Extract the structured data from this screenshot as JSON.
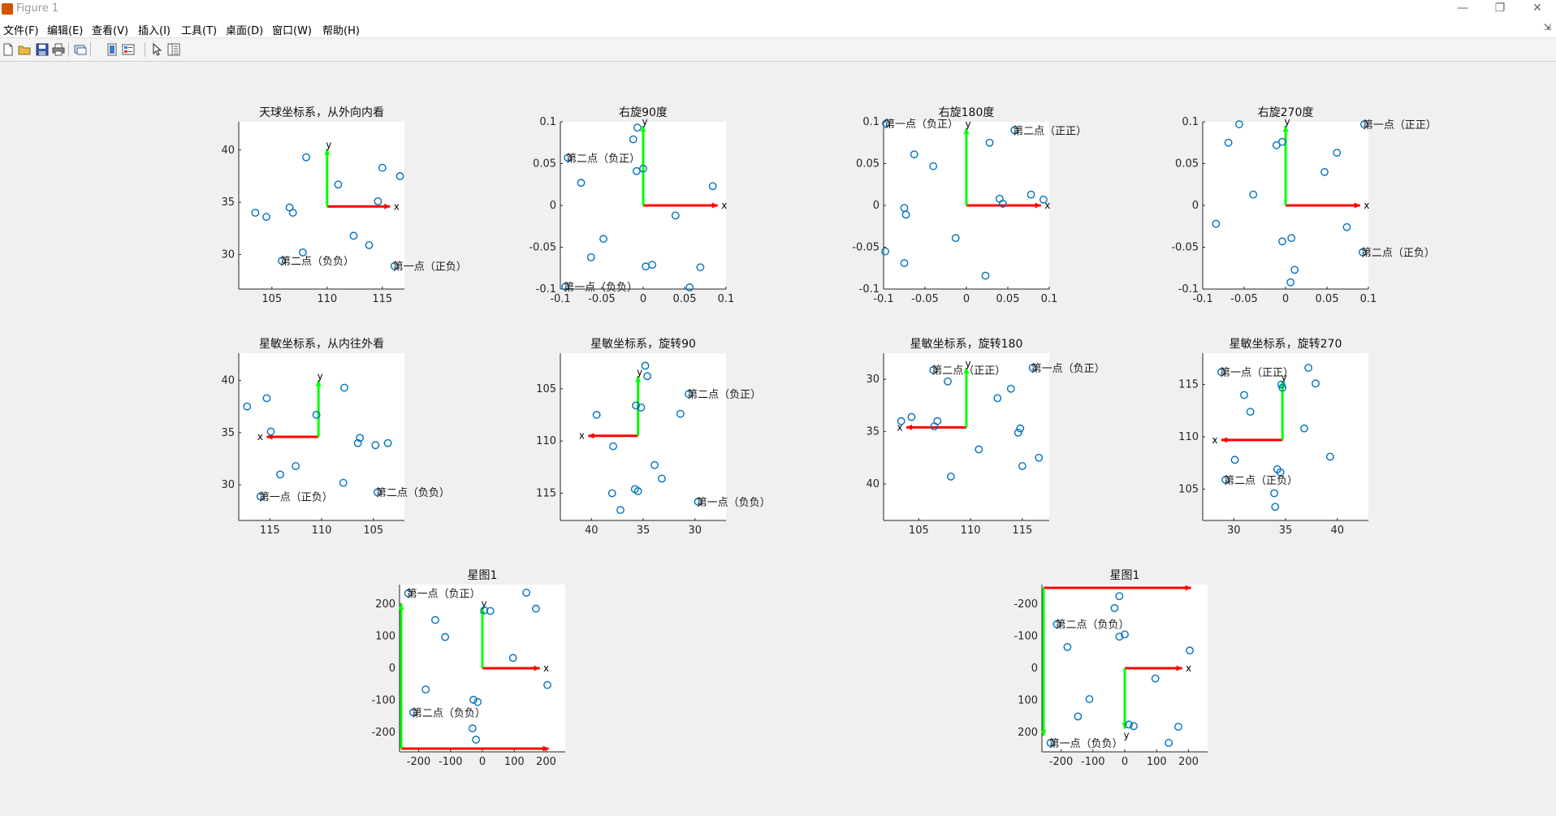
{
  "window": {
    "title": "Figure 1",
    "minimize_glyph": "—",
    "restore_glyph": "❐",
    "close_glyph": "✕"
  },
  "menu": {
    "items": [
      "文件(F)",
      "编辑(E)",
      "查看(V)",
      "插入(I)",
      "工具(T)",
      "桌面(D)",
      "窗口(W)",
      "帮助(H)"
    ],
    "overflow_glyph": "⇲"
  },
  "toolbar": {
    "icons": [
      "new-figure-icon",
      "open-file-icon",
      "save-icon",
      "print-icon",
      "link-plot-icon",
      "insert-colorbar-icon",
      "insert-legend-icon",
      "pointer-icon",
      "property-inspector-icon"
    ]
  },
  "colors": {
    "marker": "#0072bd",
    "x_arrow": "#ff0000",
    "y_arrow": "#00ff00",
    "axes_bg": "#ffffff",
    "figure_bg": "#f0f0f0"
  },
  "chart_data": [
    {
      "type": "scatter",
      "title": "天球坐标系，从外向内看",
      "xlim": [
        102,
        117
      ],
      "ylim": [
        26.7,
        42.7
      ],
      "xdir": "normal",
      "ydir": "normal",
      "xticks": [
        105,
        110,
        115
      ],
      "yticks": [
        30,
        35,
        40
      ],
      "points": [
        [
          103.5,
          34.0
        ],
        [
          104.5,
          33.6
        ],
        [
          106.6,
          34.5
        ],
        [
          106.9,
          34.0
        ],
        [
          107.8,
          30.2
        ],
        [
          108.1,
          39.3
        ],
        [
          111.0,
          36.7
        ],
        [
          112.4,
          31.8
        ],
        [
          113.8,
          30.9
        ],
        [
          114.6,
          35.1
        ],
        [
          115.0,
          38.3
        ],
        [
          116.6,
          37.5
        ],
        [
          105.9,
          29.4
        ],
        [
          116.1,
          28.9
        ]
      ],
      "axes_lines": {
        "origin": [
          110.0,
          34.6
        ],
        "x_end": [
          115.7,
          34.6
        ],
        "y_end": [
          110.0,
          40.1
        ],
        "x_label": "x",
        "y_label": "y"
      },
      "annotations": [
        {
          "text": "第二点（负负）",
          "x": 105.9,
          "y": 29.4
        },
        {
          "text": "第一点（正负）",
          "x": 116.1,
          "y": 28.9
        }
      ]
    },
    {
      "type": "scatter",
      "title": "右旋90度",
      "xlim": [
        -0.1,
        0.1
      ],
      "ylim": [
        -0.1,
        0.1
      ],
      "xdir": "normal",
      "ydir": "normal",
      "xticks": [
        -0.1,
        -0.05,
        0,
        0.05,
        0.1
      ],
      "yticks": [
        -0.1,
        -0.05,
        0,
        0.05,
        0.1
      ],
      "points": [
        [
          -0.094,
          -0.097
        ],
        [
          -0.091,
          0.057
        ],
        [
          -0.075,
          0.027
        ],
        [
          -0.063,
          -0.062
        ],
        [
          -0.048,
          -0.04
        ],
        [
          -0.012,
          0.079
        ],
        [
          -0.007,
          0.093
        ],
        [
          -0.008,
          0.041
        ],
        [
          0.0,
          0.044
        ],
        [
          0.003,
          -0.073
        ],
        [
          0.011,
          -0.071
        ],
        [
          0.039,
          -0.012
        ],
        [
          0.056,
          -0.098
        ],
        [
          0.069,
          -0.074
        ],
        [
          0.084,
          0.023
        ]
      ],
      "axes_lines": {
        "origin": [
          0,
          0
        ],
        "x_end": [
          0.09,
          0
        ],
        "y_end": [
          0,
          0.095
        ],
        "x_label": "x",
        "y_label": "y"
      },
      "annotations": [
        {
          "text": "第二点（负正）",
          "x": -0.091,
          "y": 0.057
        },
        {
          "text": "第一点（负负）",
          "x": -0.094,
          "y": -0.097
        }
      ]
    },
    {
      "type": "scatter",
      "title": "右旋180度",
      "xlim": [
        -0.1,
        0.1
      ],
      "ylim": [
        -0.1,
        0.1
      ],
      "xdir": "normal",
      "ydir": "normal",
      "xticks": [
        -0.1,
        -0.05,
        0,
        0.05,
        0.1
      ],
      "yticks": [
        -0.1,
        -0.05,
        0,
        0.05,
        0.1
      ],
      "points": [
        [
          -0.097,
          0.098
        ],
        [
          -0.098,
          -0.055
        ],
        [
          -0.063,
          0.061
        ],
        [
          -0.04,
          0.047
        ],
        [
          -0.075,
          -0.003
        ],
        [
          -0.073,
          -0.011
        ],
        [
          -0.075,
          -0.069
        ],
        [
          -0.013,
          -0.039
        ],
        [
          0.023,
          -0.084
        ],
        [
          0.028,
          0.075
        ],
        [
          0.04,
          0.008
        ],
        [
          0.044,
          0.002
        ],
        [
          0.058,
          0.09
        ],
        [
          0.078,
          0.013
        ],
        [
          0.093,
          0.007
        ]
      ],
      "axes_lines": {
        "origin": [
          0,
          0
        ],
        "x_end": [
          0.09,
          0
        ],
        "y_end": [
          0,
          0.092
        ],
        "x_label": "x",
        "y_label": "y"
      },
      "annotations": [
        {
          "text": "第一点（负正）",
          "x": -0.097,
          "y": 0.098
        },
        {
          "text": "第二点（正正）",
          "x": 0.058,
          "y": 0.09
        }
      ]
    },
    {
      "type": "scatter",
      "title": "右旋270度",
      "xlim": [
        -0.1,
        0.1
      ],
      "ylim": [
        -0.1,
        0.1
      ],
      "xdir": "normal",
      "ydir": "normal",
      "xticks": [
        -0.1,
        -0.05,
        0,
        0.05,
        0.1
      ],
      "yticks": [
        -0.1,
        -0.05,
        0,
        0.05,
        0.1
      ],
      "points": [
        [
          -0.056,
          0.097
        ],
        [
          -0.069,
          0.075
        ],
        [
          -0.084,
          -0.022
        ],
        [
          -0.039,
          0.013
        ],
        [
          -0.011,
          0.072
        ],
        [
          -0.004,
          0.076
        ],
        [
          -0.004,
          -0.043
        ],
        [
          0.007,
          -0.039
        ],
        [
          0.011,
          -0.077
        ],
        [
          0.006,
          -0.092
        ],
        [
          0.047,
          0.04
        ],
        [
          0.062,
          0.063
        ],
        [
          0.074,
          -0.026
        ],
        [
          0.095,
          0.097
        ],
        [
          0.093,
          -0.056
        ]
      ],
      "axes_lines": {
        "origin": [
          0,
          0
        ],
        "x_end": [
          0.09,
          0
        ],
        "y_end": [
          0,
          0.095
        ],
        "x_label": "x",
        "y_label": "y"
      },
      "annotations": [
        {
          "text": "第一点（正正）",
          "x": 0.095,
          "y": 0.097
        },
        {
          "text": "第二点（正负）",
          "x": 0.093,
          "y": -0.056
        }
      ]
    },
    {
      "type": "scatter",
      "title": "星敏坐标系，从内往外看",
      "xlim": [
        102,
        118
      ],
      "ylim": [
        26.6,
        42.6
      ],
      "xdir": "reverse",
      "ydir": "normal",
      "xticks": [
        105,
        110,
        115
      ],
      "yticks": [
        30,
        35,
        40
      ],
      "points": [
        [
          117.2,
          37.5
        ],
        [
          115.3,
          38.3
        ],
        [
          114.9,
          35.1
        ],
        [
          114.0,
          31.0
        ],
        [
          112.5,
          31.8
        ],
        [
          110.5,
          36.7
        ],
        [
          107.8,
          39.3
        ],
        [
          107.9,
          30.2
        ],
        [
          106.5,
          34.0
        ],
        [
          106.3,
          34.5
        ],
        [
          104.8,
          33.8
        ],
        [
          104.6,
          29.3
        ],
        [
          103.6,
          34.0
        ],
        [
          115.9,
          28.9
        ]
      ],
      "axes_lines": {
        "origin": [
          110.3,
          34.6
        ],
        "x_end": [
          115.3,
          34.6
        ],
        "y_end": [
          110.3,
          40.0
        ],
        "x_label": "x",
        "y_label": "y"
      },
      "annotations": [
        {
          "text": "第一点（正负）",
          "x": 115.9,
          "y": 28.9
        },
        {
          "text": "第二点（负负）",
          "x": 104.6,
          "y": 29.3
        }
      ]
    },
    {
      "type": "scatter",
      "title": "星敏坐标系，旋转90",
      "xlim": [
        27,
        43
      ],
      "ylim": [
        101.6,
        117.6
      ],
      "xdir": "reverse",
      "ydir": "reverse",
      "xticks": [
        30,
        35,
        40
      ],
      "yticks": [
        105,
        110,
        115
      ],
      "points": [
        [
          39.5,
          107.5
        ],
        [
          37.9,
          110.5
        ],
        [
          38.0,
          115.0
        ],
        [
          37.2,
          116.6
        ],
        [
          35.7,
          106.6
        ],
        [
          35.2,
          106.8
        ],
        [
          35.5,
          114.8
        ],
        [
          35.8,
          114.6
        ],
        [
          34.8,
          102.8
        ],
        [
          34.6,
          103.8
        ],
        [
          33.9,
          112.3
        ],
        [
          33.2,
          113.6
        ],
        [
          31.4,
          107.4
        ],
        [
          30.6,
          105.5
        ],
        [
          29.7,
          115.8
        ]
      ],
      "axes_lines": {
        "origin": [
          35.5,
          109.5
        ],
        "x_end": [
          40.3,
          109.5
        ],
        "y_end": [
          35.5,
          103.8
        ],
        "x_label": "x",
        "y_label": "y"
      },
      "annotations": [
        {
          "text": "第二点（负正）",
          "x": 30.6,
          "y": 105.5
        },
        {
          "text": "第一点（负负）",
          "x": 29.7,
          "y": 115.8
        }
      ]
    },
    {
      "type": "scatter",
      "title": "星敏坐标系，旋转180",
      "xlim": [
        101.6,
        117.6
      ],
      "ylim": [
        27.5,
        43.5
      ],
      "xdir": "normal",
      "ydir": "reverse",
      "xticks": [
        105,
        110,
        115
      ],
      "yticks": [
        30,
        35,
        40
      ],
      "points": [
        [
          103.3,
          34.0
        ],
        [
          104.3,
          33.6
        ],
        [
          106.5,
          34.5
        ],
        [
          106.8,
          34.0
        ],
        [
          106.4,
          29.1
        ],
        [
          107.8,
          30.2
        ],
        [
          108.1,
          39.3
        ],
        [
          110.8,
          36.7
        ],
        [
          112.6,
          31.8
        ],
        [
          113.9,
          30.9
        ],
        [
          114.6,
          35.1
        ],
        [
          114.8,
          34.7
        ],
        [
          115.0,
          38.3
        ],
        [
          116.6,
          37.5
        ],
        [
          116.0,
          28.9
        ]
      ],
      "axes_lines": {
        "origin": [
          109.6,
          34.6
        ],
        "x_end": [
          103.8,
          34.6
        ],
        "y_end": [
          109.6,
          28.9
        ],
        "x_label": "x",
        "y_label": "y"
      },
      "annotations": [
        {
          "text": "第二点（正正）",
          "x": 106.4,
          "y": 29.1
        },
        {
          "text": "第一点（负正）",
          "x": 116.0,
          "y": 28.9
        }
      ]
    },
    {
      "type": "scatter",
      "title": "星敏坐标系，旋转270",
      "xlim": [
        27,
        43
      ],
      "ylim": [
        102,
        118
      ],
      "xdir": "normal",
      "ydir": "normal",
      "xticks": [
        30,
        35,
        40
      ],
      "yticks": [
        105,
        110,
        115
      ],
      "points": [
        [
          28.8,
          116.2
        ],
        [
          30.1,
          107.8
        ],
        [
          31.0,
          114.0
        ],
        [
          31.6,
          112.4
        ],
        [
          33.9,
          104.6
        ],
        [
          34.0,
          103.3
        ],
        [
          34.2,
          106.9
        ],
        [
          34.5,
          106.6
        ],
        [
          34.6,
          115.0
        ],
        [
          34.7,
          114.7
        ],
        [
          36.8,
          110.8
        ],
        [
          37.2,
          116.6
        ],
        [
          37.9,
          115.1
        ],
        [
          39.3,
          108.1
        ],
        [
          29.2,
          105.9
        ]
      ],
      "axes_lines": {
        "origin": [
          34.7,
          109.7
        ],
        "x_end": [
          28.8,
          109.7
        ],
        "y_end": [
          34.7,
          115.3
        ],
        "x_label": "x",
        "y_label": "y"
      },
      "annotations": [
        {
          "text": "第一点（正正）",
          "x": 28.8,
          "y": 116.2
        },
        {
          "text": "第二点（正负）",
          "x": 29.2,
          "y": 105.9
        }
      ]
    },
    {
      "type": "scatter",
      "title": "星图1",
      "xlim": [
        -260,
        260
      ],
      "ylim": [
        -260,
        260
      ],
      "xdir": "normal",
      "ydir": "normal",
      "xticks": [
        -200,
        -100,
        0,
        100,
        200
      ],
      "yticks": [
        -200,
        -100,
        0,
        100,
        200
      ],
      "points": [
        [
          -233,
          233
        ],
        [
          -148,
          150
        ],
        [
          -117,
          97
        ],
        [
          -178,
          -66
        ],
        [
          -217,
          -137
        ],
        [
          -28,
          -98
        ],
        [
          -15,
          -105
        ],
        [
          -31,
          -187
        ],
        [
          -20,
          -222
        ],
        [
          6,
          180
        ],
        [
          25,
          178
        ],
        [
          96,
          32
        ],
        [
          138,
          235
        ],
        [
          168,
          185
        ],
        [
          204,
          -52
        ]
      ],
      "axes_lines": {
        "origin": [
          0,
          0
        ],
        "x_end": [
          180,
          0
        ],
        "y_end": [
          0,
          188
        ],
        "x_label": "x",
        "y_label": "y"
      },
      "frame_lines": {
        "x_from": [
          -255,
          -250
        ],
        "x_to": [
          208,
          -250
        ],
        "y_from": [
          -255,
          -250
        ],
        "y_to": [
          -255,
          200
        ]
      },
      "annotations": [
        {
          "text": "第一点（负正）",
          "x": -233,
          "y": 233
        },
        {
          "text": "第二点（负负）",
          "x": -217,
          "y": -137
        }
      ]
    },
    {
      "type": "scatter",
      "title": "星图1",
      "xlim": [
        -260,
        260
      ],
      "ylim": [
        -260,
        260
      ],
      "xdir": "normal",
      "ydir": "reverse",
      "xticks": [
        -200,
        -100,
        0,
        100,
        200
      ],
      "yticks": [
        -200,
        -100,
        0,
        100,
        200
      ],
      "points": [
        [
          -233,
          232
        ],
        [
          -213,
          -137
        ],
        [
          -180,
          -66
        ],
        [
          -147,
          150
        ],
        [
          -111,
          96
        ],
        [
          -32,
          -187
        ],
        [
          -17,
          -224
        ],
        [
          -17,
          -98
        ],
        [
          0,
          -105
        ],
        [
          13,
          175
        ],
        [
          28,
          180
        ],
        [
          96,
          32
        ],
        [
          138,
          232
        ],
        [
          168,
          182
        ],
        [
          204,
          -55
        ]
      ],
      "axes_lines": {
        "origin": [
          0,
          0
        ],
        "x_end": [
          180,
          0
        ],
        "y_end": [
          0,
          188
        ],
        "x_label": "x",
        "y_label": "y"
      },
      "frame_lines": {
        "x_from": [
          -255,
          -250
        ],
        "x_to": [
          208,
          -250
        ],
        "y_from": [
          -255,
          -250
        ],
        "y_to": [
          -255,
          210
        ]
      },
      "annotations": [
        {
          "text": "第二点（负负）",
          "x": -213,
          "y": -137
        },
        {
          "text": "第一点（负负）",
          "x": -233,
          "y": 232
        }
      ]
    }
  ]
}
